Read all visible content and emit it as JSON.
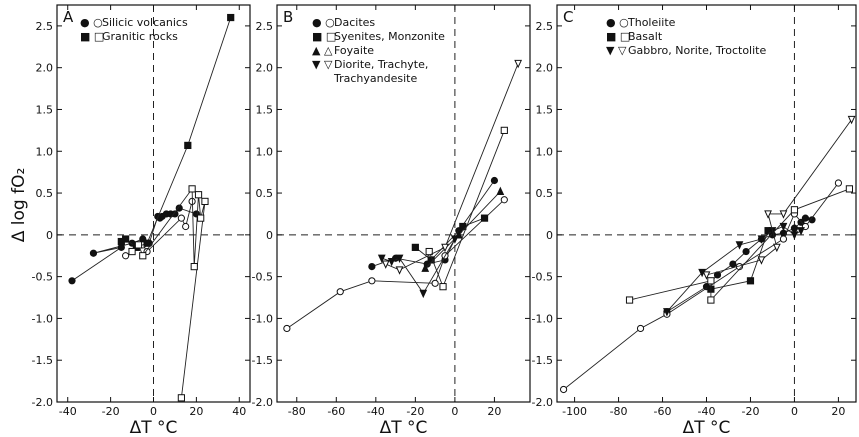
{
  "ylabel": "Δ log fO₂",
  "chart_data": [
    {
      "type": "line",
      "panel": "A",
      "xlabel": "ΔT °C",
      "xlim": [
        -45,
        45
      ],
      "ylim": [
        -2.0,
        2.75
      ],
      "xticks": [
        -40,
        -20,
        0,
        20,
        40
      ],
      "xtick_labels": [
        "-40",
        "-20",
        "0",
        "20",
        "40"
      ],
      "yticks": [
        -2.0,
        -1.5,
        -1.0,
        -0.5,
        0,
        0.5,
        1.0,
        1.5,
        2.0,
        2.5
      ],
      "ytick_labels": [
        "-2.0",
        "-1.5",
        "-1.0",
        "-0.5",
        "0",
        "0.5",
        "1.0",
        "1.5",
        "2.0",
        "2.5"
      ],
      "legend": [
        {
          "symbols": "● ○",
          "label": "Silicic volcanics"
        },
        {
          "symbols": "■ □",
          "label": "Granitic rocks"
        }
      ],
      "series": [
        {
          "marker": "circle",
          "filled": true,
          "values": [
            [
              -38,
              -0.55
            ],
            [
              -15,
              -0.15
            ],
            [
              -28,
              -0.22
            ],
            [
              -10,
              -0.1
            ],
            [
              -5,
              -0.05
            ],
            [
              -2,
              -0.1
            ],
            [
              2,
              0.22
            ],
            [
              3,
              0.2
            ],
            [
              4,
              0.22
            ],
            [
              6,
              0.25
            ],
            [
              8,
              0.25
            ],
            [
              10,
              0.25
            ],
            [
              12,
              0.32
            ],
            [
              20,
              0.25
            ]
          ]
        },
        {
          "marker": "circle",
          "filled": false,
          "values": [
            [
              -13,
              -0.25
            ],
            [
              -5,
              -0.12
            ],
            [
              -3,
              -0.2
            ],
            [
              13,
              0.2
            ],
            [
              15,
              0.1
            ],
            [
              18,
              0.4
            ]
          ]
        },
        {
          "marker": "square",
          "filled": true,
          "values": [
            [
              -15,
              -0.08
            ],
            [
              -13,
              -0.05
            ],
            [
              -8,
              -0.15
            ],
            [
              -3,
              -0.1
            ],
            [
              16,
              1.07
            ],
            [
              36,
              2.6
            ]
          ]
        },
        {
          "marker": "square",
          "filled": false,
          "values": [
            [
              -10,
              -0.2
            ],
            [
              -7,
              -0.12
            ],
            [
              -5,
              -0.25
            ],
            [
              18,
              0.55
            ],
            [
              19,
              -0.38
            ],
            [
              21,
              0.48
            ],
            [
              22,
              0.2
            ],
            [
              24,
              0.4
            ],
            [
              13,
              -1.95
            ]
          ]
        }
      ]
    },
    {
      "type": "line",
      "panel": "B",
      "xlabel": "ΔT °C",
      "xlim": [
        -90,
        38
      ],
      "ylim": [
        -2.0,
        2.75
      ],
      "xticks": [
        -80,
        -60,
        -40,
        -20,
        0,
        20
      ],
      "xtick_labels": [
        "-80",
        "-60",
        "-40",
        "-20",
        "0",
        "20"
      ],
      "yticks": [
        -2.0,
        -1.5,
        -1.0,
        -0.5,
        0,
        0.5,
        1.0,
        1.5,
        2.0,
        2.5
      ],
      "ytick_labels": [
        "-2.0",
        "-1.5",
        "-1.0",
        "-0.5",
        "0",
        "0.5",
        "1.0",
        "1.5",
        "2.0",
        "2.5"
      ],
      "legend": [
        {
          "symbols": "● ○",
          "label": "Dacites"
        },
        {
          "symbols": "■ □",
          "label": "Syenites, Monzonite"
        },
        {
          "symbols": "▲ △",
          "label": "Foyaite"
        },
        {
          "symbols": "▼ ▽",
          "label": "Diorite, Trachyte,"
        },
        {
          "symbols": "",
          "label": "Trachyandesite"
        }
      ],
      "series": [
        {
          "marker": "circle",
          "filled": true,
          "values": [
            [
              -42,
              -0.38
            ],
            [
              -30,
              -0.28
            ],
            [
              -14,
              -0.35
            ],
            [
              -5,
              -0.3
            ],
            [
              2,
              0.05
            ],
            [
              20,
              0.65
            ]
          ]
        },
        {
          "marker": "circle",
          "filled": false,
          "values": [
            [
              -85,
              -1.12
            ],
            [
              -58,
              -0.68
            ],
            [
              -42,
              -0.55
            ],
            [
              -10,
              -0.58
            ],
            [
              -5,
              -0.25
            ],
            [
              25,
              0.42
            ]
          ]
        },
        {
          "marker": "square",
          "filled": true,
          "values": [
            [
              -20,
              -0.15
            ],
            [
              -12,
              -0.3
            ],
            [
              4,
              0.1
            ],
            [
              15,
              0.2
            ]
          ]
        },
        {
          "marker": "square",
          "filled": false,
          "values": [
            [
              -13,
              -0.2
            ],
            [
              -6,
              -0.62
            ],
            [
              25,
              1.25
            ]
          ]
        },
        {
          "marker": "triangle-up",
          "filled": true,
          "values": [
            [
              -15,
              -0.4
            ],
            [
              2,
              0.0
            ],
            [
              23,
              0.52
            ]
          ]
        },
        {
          "marker": "triangle-down",
          "filled": true,
          "values": [
            [
              -37,
              -0.28
            ],
            [
              -32,
              -0.32
            ],
            [
              -28,
              -0.28
            ],
            [
              -16,
              -0.7
            ],
            [
              0,
              -0.05
            ]
          ]
        },
        {
          "marker": "triangle-down",
          "filled": false,
          "values": [
            [
              -35,
              -0.35
            ],
            [
              -28,
              -0.42
            ],
            [
              -5,
              -0.15
            ],
            [
              32,
              2.05
            ]
          ]
        }
      ]
    },
    {
      "type": "line",
      "panel": "C",
      "xlabel": "ΔT °C",
      "xlim": [
        -108,
        28
      ],
      "ylim": [
        -2.0,
        2.75
      ],
      "xticks": [
        -100,
        -80,
        -60,
        -40,
        -20,
        0,
        20
      ],
      "xtick_labels": [
        "-100",
        "-80",
        "-60",
        "-40",
        "-20",
        "0",
        "20"
      ],
      "yticks": [
        -2.0,
        -1.5,
        -1.0,
        -0.5,
        0,
        0.5,
        1.0,
        1.5,
        2.0,
        2.5
      ],
      "ytick_labels": [
        "-2.0",
        "-1.5",
        "-1.0",
        "-0.5",
        "0",
        "0.5",
        "1.0",
        "1.5",
        "2.0",
        "2.5"
      ],
      "legend": [
        {
          "symbols": "● ○",
          "label": "Tholeiite"
        },
        {
          "symbols": "■ □",
          "label": "Basalt"
        },
        {
          "symbols": "▼ ▽",
          "label": "Gabbro, Norite, Troctolite"
        }
      ],
      "series": [
        {
          "marker": "circle",
          "filled": true,
          "values": [
            [
              -58,
              -0.92
            ],
            [
              -40,
              -0.62
            ],
            [
              -35,
              -0.48
            ],
            [
              -28,
              -0.35
            ],
            [
              -22,
              -0.2
            ],
            [
              -15,
              -0.05
            ],
            [
              -10,
              0.0
            ],
            [
              -5,
              0.02
            ],
            [
              0,
              0.08
            ],
            [
              3,
              0.15
            ],
            [
              5,
              0.2
            ],
            [
              8,
              0.18
            ]
          ]
        },
        {
          "marker": "circle",
          "filled": false,
          "values": [
            [
              -105,
              -1.85
            ],
            [
              -70,
              -1.12
            ],
            [
              -58,
              -0.95
            ],
            [
              -25,
              -0.38
            ],
            [
              -5,
              -0.05
            ],
            [
              0,
              0.25
            ],
            [
              5,
              0.1
            ],
            [
              20,
              0.62
            ]
          ]
        },
        {
          "marker": "square",
          "filled": true,
          "values": [
            [
              -38,
              -0.65
            ],
            [
              -20,
              -0.55
            ],
            [
              -12,
              0.05
            ]
          ]
        },
        {
          "marker": "square",
          "filled": false,
          "values": [
            [
              -75,
              -0.78
            ],
            [
              -38,
              -0.55
            ],
            [
              -38,
              -0.78
            ],
            [
              0,
              0.3
            ],
            [
              25,
              0.55
            ]
          ]
        },
        {
          "marker": "triangle-down",
          "filled": true,
          "values": [
            [
              -58,
              -0.92
            ],
            [
              -42,
              -0.45
            ],
            [
              -25,
              -0.12
            ],
            [
              -15,
              -0.05
            ],
            [
              -10,
              0.05
            ],
            [
              -5,
              0.1
            ],
            [
              0,
              0.0
            ],
            [
              3,
              0.05
            ]
          ]
        },
        {
          "marker": "triangle-down",
          "filled": false,
          "values": [
            [
              -40,
              -0.48
            ],
            [
              -15,
              -0.3
            ],
            [
              -8,
              -0.15
            ],
            [
              -12,
              0.25
            ],
            [
              -5,
              0.25
            ],
            [
              26,
              1.38
            ]
          ]
        }
      ]
    }
  ]
}
